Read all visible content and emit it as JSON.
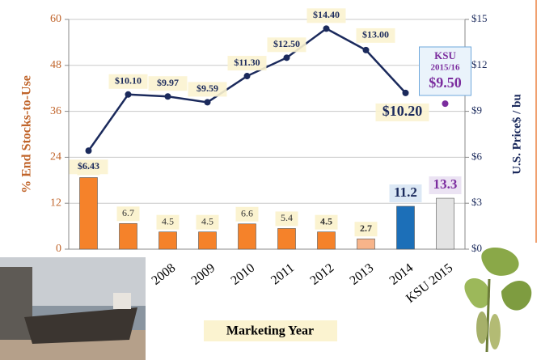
{
  "chart_data": {
    "type": "bar-line",
    "x_label": "Marketing Year",
    "y_label": "% End Stocks-to-Use",
    "y2_label": "U.S. Price$ / bu",
    "categories": [
      null,
      null,
      "2008",
      "2009",
      "2010",
      "2011",
      "2012",
      "2013",
      "2014",
      "KSU 2015"
    ],
    "series": [
      {
        "type": "bar",
        "values": [
          18.7,
          6.7,
          4.5,
          4.5,
          6.6,
          5.4,
          4.5,
          2.7,
          11.2,
          13.3
        ],
        "colors": [
          "#f5822a",
          "#f5822a",
          "#f5822a",
          "#f5822a",
          "#f5822a",
          "#f5822a",
          "#f5822a",
          "#f7b48a",
          "#1c6fb8",
          "#e3e3e3"
        ]
      },
      {
        "type": "line",
        "axis": "y2",
        "color": "#1b2a5c",
        "values": [
          6.43,
          10.1,
          9.97,
          9.59,
          11.3,
          12.5,
          14.4,
          13.0,
          10.2,
          null
        ],
        "value_labels": [
          "$6.43",
          "$10.10",
          "$9.97",
          "$9.59",
          "$11.30",
          "$12.50",
          "$14.40",
          "$13.00",
          "$10.20",
          null
        ]
      },
      {
        "type": "point",
        "axis": "y2",
        "color": "#7b2d9e",
        "values": [
          null,
          null,
          null,
          null,
          null,
          null,
          null,
          null,
          null,
          9.5
        ],
        "value_labels": [
          null,
          null,
          null,
          null,
          null,
          null,
          null,
          null,
          null,
          "$9.50"
        ]
      }
    ],
    "annotations": [
      "KSU",
      "2015/16"
    ],
    "ylim": [
      0,
      60
    ],
    "yticks": [
      0,
      12,
      24,
      36,
      48,
      60
    ],
    "y2lim": [
      0,
      15
    ],
    "y2ticks": [
      {
        "value": 0,
        "label": "$0"
      },
      {
        "value": 3,
        "label": "$3"
      },
      {
        "value": 6,
        "label": "$6"
      },
      {
        "value": 9,
        "label": "$9"
      },
      {
        "value": 12,
        "label": "$12"
      },
      {
        "value": 15,
        "label": "$15"
      }
    ],
    "grid": true
  }
}
